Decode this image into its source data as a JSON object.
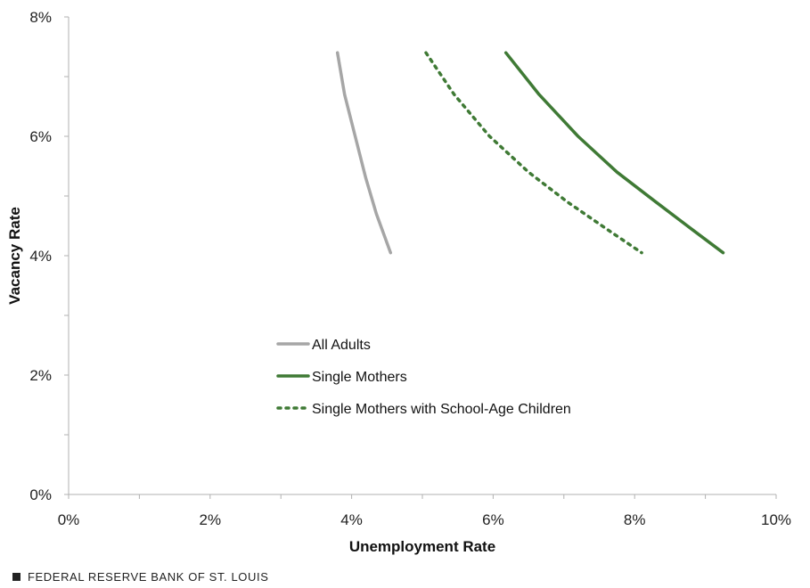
{
  "chart_data": {
    "type": "line",
    "title": "",
    "xlabel": "Unemployment Rate",
    "ylabel": "Vacancy Rate",
    "xlim": [
      0,
      10
    ],
    "ylim": [
      0,
      8
    ],
    "x_ticks": [
      0,
      2,
      4,
      6,
      8,
      10
    ],
    "x_tick_labels": [
      "0%",
      "2%",
      "4%",
      "6%",
      "8%",
      "10%"
    ],
    "y_ticks": [
      0,
      2,
      4,
      6,
      8
    ],
    "y_tick_labels": [
      "0%",
      "2%",
      "4%",
      "6%",
      "8%"
    ],
    "grid": false,
    "legend_position": "lower-middle",
    "series": [
      {
        "name": "All Adults",
        "color": "#a6a6a6",
        "style": "solid",
        "points": [
          [
            3.8,
            7.4
          ],
          [
            3.9,
            6.7
          ],
          [
            4.05,
            6.0
          ],
          [
            4.2,
            5.3
          ],
          [
            4.35,
            4.7
          ],
          [
            4.55,
            4.05
          ]
        ]
      },
      {
        "name": "Single Mothers",
        "color": "#3f7a35",
        "style": "solid",
        "points": [
          [
            6.18,
            7.4
          ],
          [
            6.65,
            6.7
          ],
          [
            7.2,
            6.0
          ],
          [
            7.75,
            5.4
          ],
          [
            8.3,
            4.9
          ],
          [
            8.8,
            4.45
          ],
          [
            9.25,
            4.05
          ]
        ]
      },
      {
        "name": "Single Mothers with School-Age Children",
        "color": "#3f7a35",
        "style": "dotted",
        "points": [
          [
            5.05,
            7.4
          ],
          [
            5.45,
            6.7
          ],
          [
            5.95,
            6.0
          ],
          [
            6.5,
            5.4
          ],
          [
            7.05,
            4.9
          ],
          [
            7.6,
            4.45
          ],
          [
            8.1,
            4.05
          ]
        ]
      }
    ]
  },
  "footer": {
    "source_text": "FEDERAL RESERVE BANK OF ST. LOUIS"
  }
}
